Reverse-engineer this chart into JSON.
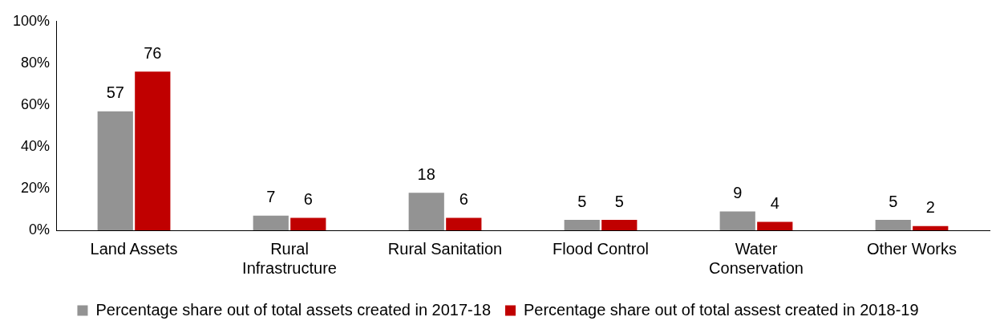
{
  "chart_data": {
    "type": "bar",
    "categories": [
      "Land Assets",
      "Rural Infrastructure",
      "Rural Sanitation",
      "Flood Control",
      "Water Conservation",
      "Other Works"
    ],
    "series": [
      {
        "name": "Percentage share out of total assets created in 2017-18",
        "color": "#939393",
        "values": [
          57,
          7,
          18,
          5,
          9,
          5
        ]
      },
      {
        "name": "Percentage share out of total assest created in 2018-19",
        "color": "#c00000",
        "values": [
          76,
          6,
          6,
          5,
          4,
          2
        ]
      }
    ],
    "ylim": [
      0,
      100
    ],
    "yticks": [
      {
        "value": 0,
        "label": "0%"
      },
      {
        "value": 20,
        "label": "20%"
      },
      {
        "value": 40,
        "label": "40%"
      },
      {
        "value": 60,
        "label": "60%"
      },
      {
        "value": 80,
        "label": "80%"
      },
      {
        "value": 100,
        "label": "100%"
      }
    ],
    "grid": false,
    "legend": "bottom",
    "data_labels": true
  }
}
